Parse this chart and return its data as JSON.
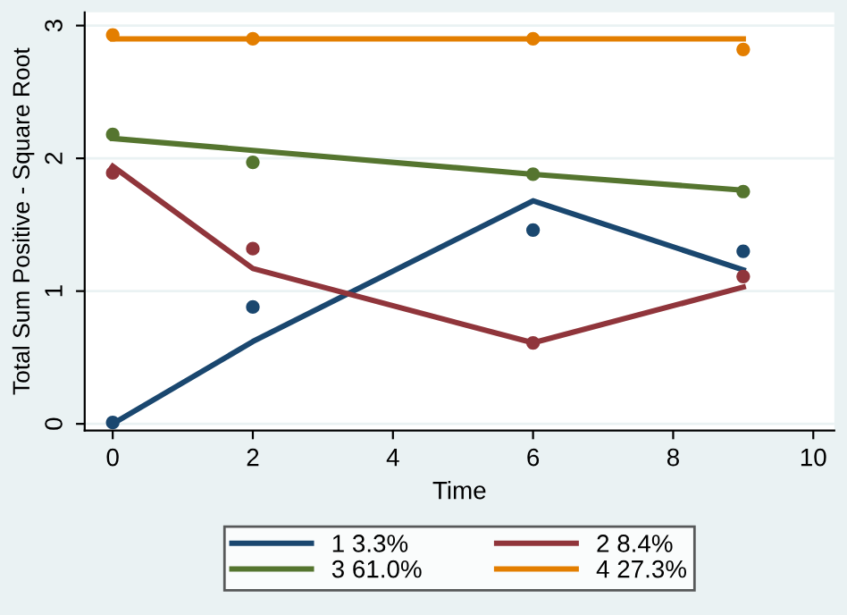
{
  "chart_data": {
    "type": "line",
    "xlabel": "Time",
    "ylabel": "Total Sum Positive - Square Root",
    "x": [
      0,
      2,
      6,
      9
    ],
    "series": [
      {
        "name": "1 3.3%",
        "color": "#1a476f",
        "values": [
          0.0,
          0.62,
          1.68,
          1.16
        ]
      },
      {
        "name": "2 8.4%",
        "color": "#90353b",
        "values": [
          1.94,
          1.17,
          0.61,
          1.03
        ]
      },
      {
        "name": "3 61.0%",
        "color": "#55752f",
        "values": [
          2.15,
          2.06,
          1.88,
          1.76
        ]
      },
      {
        "name": "4 27.3%",
        "color": "#e37e00",
        "values": [
          2.9,
          2.9,
          2.9,
          2.9
        ]
      },
      {
        "color": "#1a476f",
        "type": "scatter",
        "marker": "circle",
        "values": [
          0.01,
          0.88,
          1.46,
          1.3
        ]
      },
      {
        "color": "#90353b",
        "type": "scatter",
        "marker": "circle",
        "values": [
          1.89,
          1.32,
          0.61,
          1.11
        ]
      },
      {
        "color": "#55752f",
        "type": "scatter",
        "marker": "circle",
        "values": [
          2.18,
          1.97,
          1.88,
          1.75
        ]
      },
      {
        "color": "#e37e00",
        "type": "scatter",
        "marker": "circle",
        "values": [
          2.93,
          2.9,
          2.9,
          2.82
        ]
      }
    ],
    "xlim": [
      -0.4,
      10.3
    ],
    "xticks": [
      0,
      2,
      4,
      6,
      8,
      10
    ],
    "ylim": [
      -0.05,
      3.1
    ],
    "yticks": [
      0,
      1,
      2,
      3
    ],
    "grid": "y",
    "legend": "bottom"
  }
}
